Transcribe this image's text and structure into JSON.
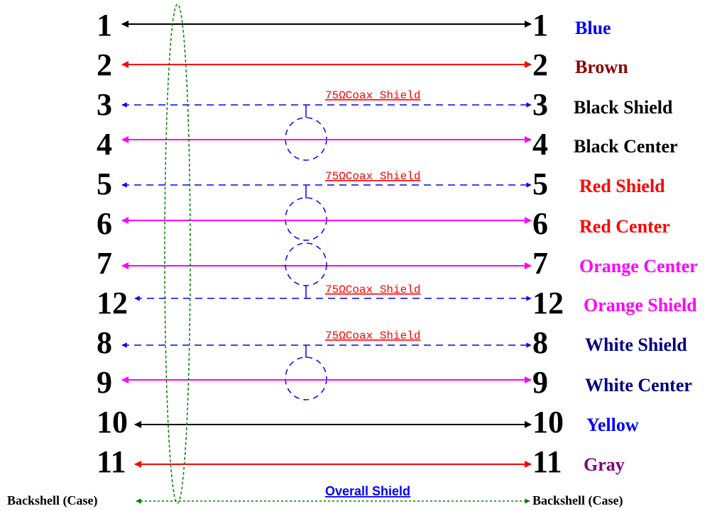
{
  "colors": {
    "black": "#000000",
    "red": "#ff0000",
    "blue": "#0000ff",
    "magenta": "#ff00ff",
    "green": "#008000",
    "brown": "#8b0000",
    "navy": "#000080",
    "purple": "#800080"
  },
  "wires": [
    {
      "left": "1",
      "right": "1",
      "color": "Blue",
      "wire": "#000000",
      "dashed": false,
      "label_color": "#0000ff"
    },
    {
      "left": "2",
      "right": "2",
      "color": "Brown",
      "wire": "#ff0000",
      "dashed": false,
      "label_color": "#8b0000"
    },
    {
      "left": "3",
      "right": "3",
      "color": "Black Shield",
      "wire": "#0000ff",
      "dashed": true,
      "label_color": "#000000"
    },
    {
      "left": "4",
      "right": "4",
      "color": "Black Center",
      "wire": "#ff00ff",
      "dashed": false,
      "label_color": "#000000"
    },
    {
      "left": "5",
      "right": "5",
      "color": "Red Shield",
      "wire": "#0000ff",
      "dashed": true,
      "label_color": "#ff0000"
    },
    {
      "left": "6",
      "right": "6",
      "color": "Red Center",
      "wire": "#ff00ff",
      "dashed": false,
      "label_color": "#ff0000"
    },
    {
      "left": "7",
      "right": "7",
      "color": "Orange Center",
      "wire": "#ff00ff",
      "dashed": false,
      "label_color": "#ff00ff"
    },
    {
      "left": "12",
      "right": "12",
      "color": "Orange Shield",
      "wire": "#0000ff",
      "dashed": true,
      "label_color": "#ff00ff"
    },
    {
      "left": "8",
      "right": "8",
      "color": "White Shield",
      "wire": "#0000ff",
      "dashed": true,
      "label_color": "#000080"
    },
    {
      "left": "9",
      "right": "9",
      "color": "White Center",
      "wire": "#ff00ff",
      "dashed": false,
      "label_color": "#000080"
    },
    {
      "left": "10",
      "right": "10",
      "color": "Yellow",
      "wire": "#000000",
      "dashed": false,
      "label_color": "#0000ff"
    },
    {
      "left": "11",
      "right": "11",
      "color": "Gray",
      "wire": "#ff0000",
      "dashed": false,
      "label_color": "#800080"
    }
  ],
  "coax_shield_labels": [
    "75ΩCoax Shield",
    "75ΩCoax Shield",
    "75ΩCoax Shield",
    "75ΩCoax Shield"
  ],
  "backshell": {
    "left": "Backshell (Case)",
    "right": "Backshell (Case)"
  },
  "overall_shield": "Overall Shield"
}
